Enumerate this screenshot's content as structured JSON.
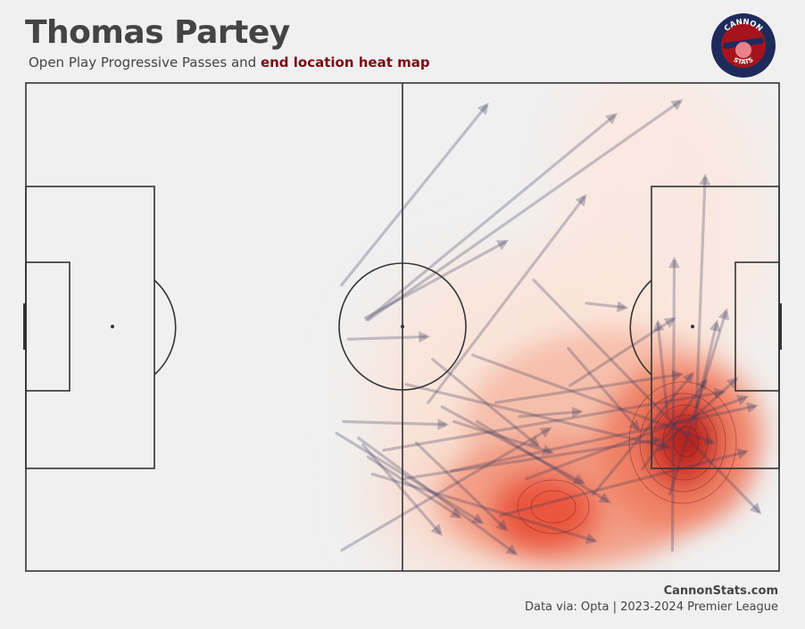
{
  "header": {
    "title": "Thomas Partey",
    "subtitle_plain": "Open Play Progressive Passes and ",
    "subtitle_highlight": "end location heat map"
  },
  "logo": {
    "text_top": "CANNON",
    "text_bottom": "STATS"
  },
  "footer": {
    "site": "CannonStats.com",
    "source": "Data via: Opta | 2023-2024 Premier League"
  },
  "colors": {
    "background": "#f0f0f0",
    "pitch_lines": "#333333",
    "arrow": "#3a3a5e",
    "heat_low": "#fbe6dc",
    "heat_high": "#e8432c",
    "highlight": "#7a0a14",
    "logo_ring": "#1f2a5c",
    "logo_fill": "#a5141c"
  },
  "chart_data": {
    "type": "pass_map",
    "pitch_length": 120,
    "pitch_width": 80,
    "passes": [
      {
        "x1": 50.3,
        "y1": 33.1,
        "x2": 73.3,
        "y2": 3.8
      },
      {
        "x1": 54.3,
        "y1": 38.8,
        "x2": 93.7,
        "y2": 5.4
      },
      {
        "x1": 54.6,
        "y1": 38.8,
        "x2": 104.1,
        "y2": 3.1
      },
      {
        "x1": 54.1,
        "y1": 38.5,
        "x2": 76.3,
        "y2": 26.1
      },
      {
        "x1": 51.4,
        "y1": 42.0,
        "x2": 63.7,
        "y2": 41.6
      },
      {
        "x1": 64.1,
        "y1": 52.4,
        "x2": 88.9,
        "y2": 18.8
      },
      {
        "x1": 80.9,
        "y1": 32.3,
        "x2": 116.7,
        "y2": 70.2
      },
      {
        "x1": 89.3,
        "y1": 36.1,
        "x2": 95.3,
        "y2": 36.8
      },
      {
        "x1": 86.7,
        "y1": 49.6,
        "x2": 103.0,
        "y2": 38.8
      },
      {
        "x1": 86.4,
        "y1": 43.5,
        "x2": 97.4,
        "y2": 56.6
      },
      {
        "x1": 78.6,
        "y1": 54.7,
        "x2": 88.1,
        "y2": 53.9
      },
      {
        "x1": 64.8,
        "y1": 45.3,
        "x2": 81.4,
        "y2": 59.3
      },
      {
        "x1": 50.6,
        "y1": 55.5,
        "x2": 66.7,
        "y2": 56.0
      },
      {
        "x1": 68.2,
        "y1": 55.5,
        "x2": 83.5,
        "y2": 60.5
      },
      {
        "x1": 49.5,
        "y1": 57.4,
        "x2": 72.4,
        "y2": 71.9
      },
      {
        "x1": 53.0,
        "y1": 58.2,
        "x2": 77.8,
        "y2": 77.0
      },
      {
        "x1": 53.7,
        "y1": 59.3,
        "x2": 65.9,
        "y2": 73.7
      },
      {
        "x1": 54.5,
        "y1": 61.3,
        "x2": 68.9,
        "y2": 71.0
      },
      {
        "x1": 55.2,
        "y1": 64.1,
        "x2": 90.4,
        "y2": 75.0
      },
      {
        "x1": 57.0,
        "y1": 60.2,
        "x2": 110.8,
        "y2": 50.7
      },
      {
        "x1": 60.0,
        "y1": 64.9,
        "x2": 100.7,
        "y2": 58.5
      },
      {
        "x1": 62.2,
        "y1": 59.0,
        "x2": 76.3,
        "y2": 73.0
      },
      {
        "x1": 66.3,
        "y1": 53.1,
        "x2": 88.5,
        "y2": 65.4
      },
      {
        "x1": 67.8,
        "y1": 63.6,
        "x2": 116.0,
        "y2": 53.0
      },
      {
        "x1": 71.9,
        "y1": 55.5,
        "x2": 92.6,
        "y2": 68.5
      },
      {
        "x1": 74.9,
        "y1": 52.4,
        "x2": 104.1,
        "y2": 47.8
      },
      {
        "x1": 79.7,
        "y1": 64.9,
        "x2": 114.5,
        "y2": 51.6
      },
      {
        "x1": 90.4,
        "y1": 67.4,
        "x2": 106.0,
        "y2": 47.9
      },
      {
        "x1": 75.6,
        "y1": 70.9,
        "x2": 114.5,
        "y2": 60.5
      },
      {
        "x1": 50.3,
        "y1": 76.6,
        "x2": 83.2,
        "y2": 56.8
      },
      {
        "x1": 98.2,
        "y1": 63.3,
        "x2": 108.2,
        "y2": 49.0
      },
      {
        "x1": 107.0,
        "y1": 53.0,
        "x2": 110.0,
        "y2": 39.5
      },
      {
        "x1": 102.6,
        "y1": 67.4,
        "x2": 111.5,
        "y2": 37.6
      },
      {
        "x1": 106.7,
        "y1": 56.7,
        "x2": 108.2,
        "y2": 15.6
      },
      {
        "x1": 103.0,
        "y1": 76.6,
        "x2": 103.3,
        "y2": 29.2
      },
      {
        "x1": 102.2,
        "y1": 54.3,
        "x2": 100.7,
        "y2": 39.5
      },
      {
        "x1": 100.7,
        "y1": 60.2,
        "x2": 113.0,
        "y2": 48.7
      },
      {
        "x1": 60.6,
        "y1": 49.4,
        "x2": 102.2,
        "y2": 59.7
      },
      {
        "x1": 71.2,
        "y1": 44.6,
        "x2": 109.3,
        "y2": 58.9
      }
    ]
  }
}
